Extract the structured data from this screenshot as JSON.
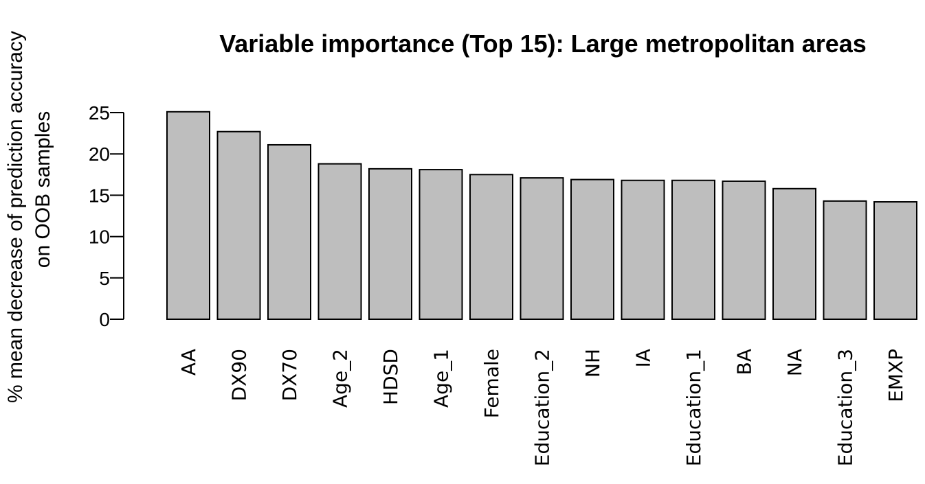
{
  "chart_data": {
    "type": "bar",
    "title": "Variable importance (Top 15): Large metropolitan areas",
    "xlabel": "",
    "ylabel_lines": [
      "% mean decrease of prediction accuracy",
      "on OOB samples"
    ],
    "categories": [
      "AA",
      "DX90",
      "DX70",
      "Age_2",
      "HDSD",
      "Age_1",
      "Female",
      "Education_2",
      "NH",
      "IA",
      "Education_1",
      "BA",
      "NA",
      "Education_3",
      "EMXP"
    ],
    "values": [
      25.1,
      22.7,
      21.1,
      18.8,
      18.2,
      18.1,
      17.5,
      17.1,
      16.9,
      16.8,
      16.8,
      16.7,
      15.8,
      14.3,
      14.2
    ],
    "yticks": [
      "0",
      "5",
      "10",
      "15",
      "20",
      "25"
    ],
    "ylim": [
      0,
      25
    ],
    "grid": false,
    "legend": "none",
    "bar_color": "#bebebe",
    "bar_edge_color": "#000000"
  }
}
